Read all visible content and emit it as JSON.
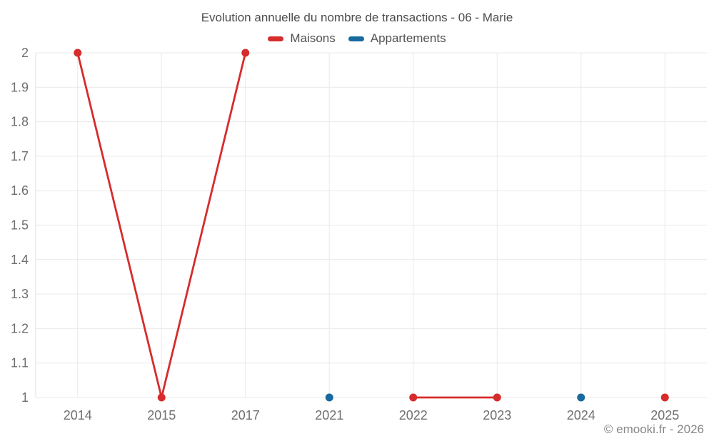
{
  "chart_data": {
    "type": "line",
    "title": "Evolution annuelle du nombre de transactions - 06 - Marie",
    "categories": [
      "2014",
      "2015",
      "2017",
      "2021",
      "2022",
      "2023",
      "2024",
      "2025"
    ],
    "series": [
      {
        "name": "Maisons",
        "color": "#d62c2c",
        "values": [
          2,
          1,
          2,
          null,
          1,
          1,
          null,
          1
        ]
      },
      {
        "name": "Appartements",
        "color": "#17699e",
        "values": [
          null,
          null,
          null,
          1,
          null,
          null,
          1,
          null
        ]
      }
    ],
    "ylim": [
      1,
      2
    ],
    "ytick_step": 0.1,
    "ytick_labels": [
      "1",
      "1.1",
      "1.2",
      "1.3",
      "1.4",
      "1.5",
      "1.6",
      "1.7",
      "1.8",
      "1.9",
      "2"
    ],
    "grid": true,
    "legend_position": "top",
    "marker_radius": 5.5,
    "line_width": 2.8,
    "colors": {
      "grid": "#e9e9e9",
      "axis": "#e2e2e2",
      "tick_label": "#6f6f6f",
      "title": "#4c4c4c",
      "legend_text": "#525252",
      "copyright": "#878787",
      "background": "#ffffff"
    }
  },
  "footer": {
    "copyright": "© emooki.fr - 2026"
  }
}
